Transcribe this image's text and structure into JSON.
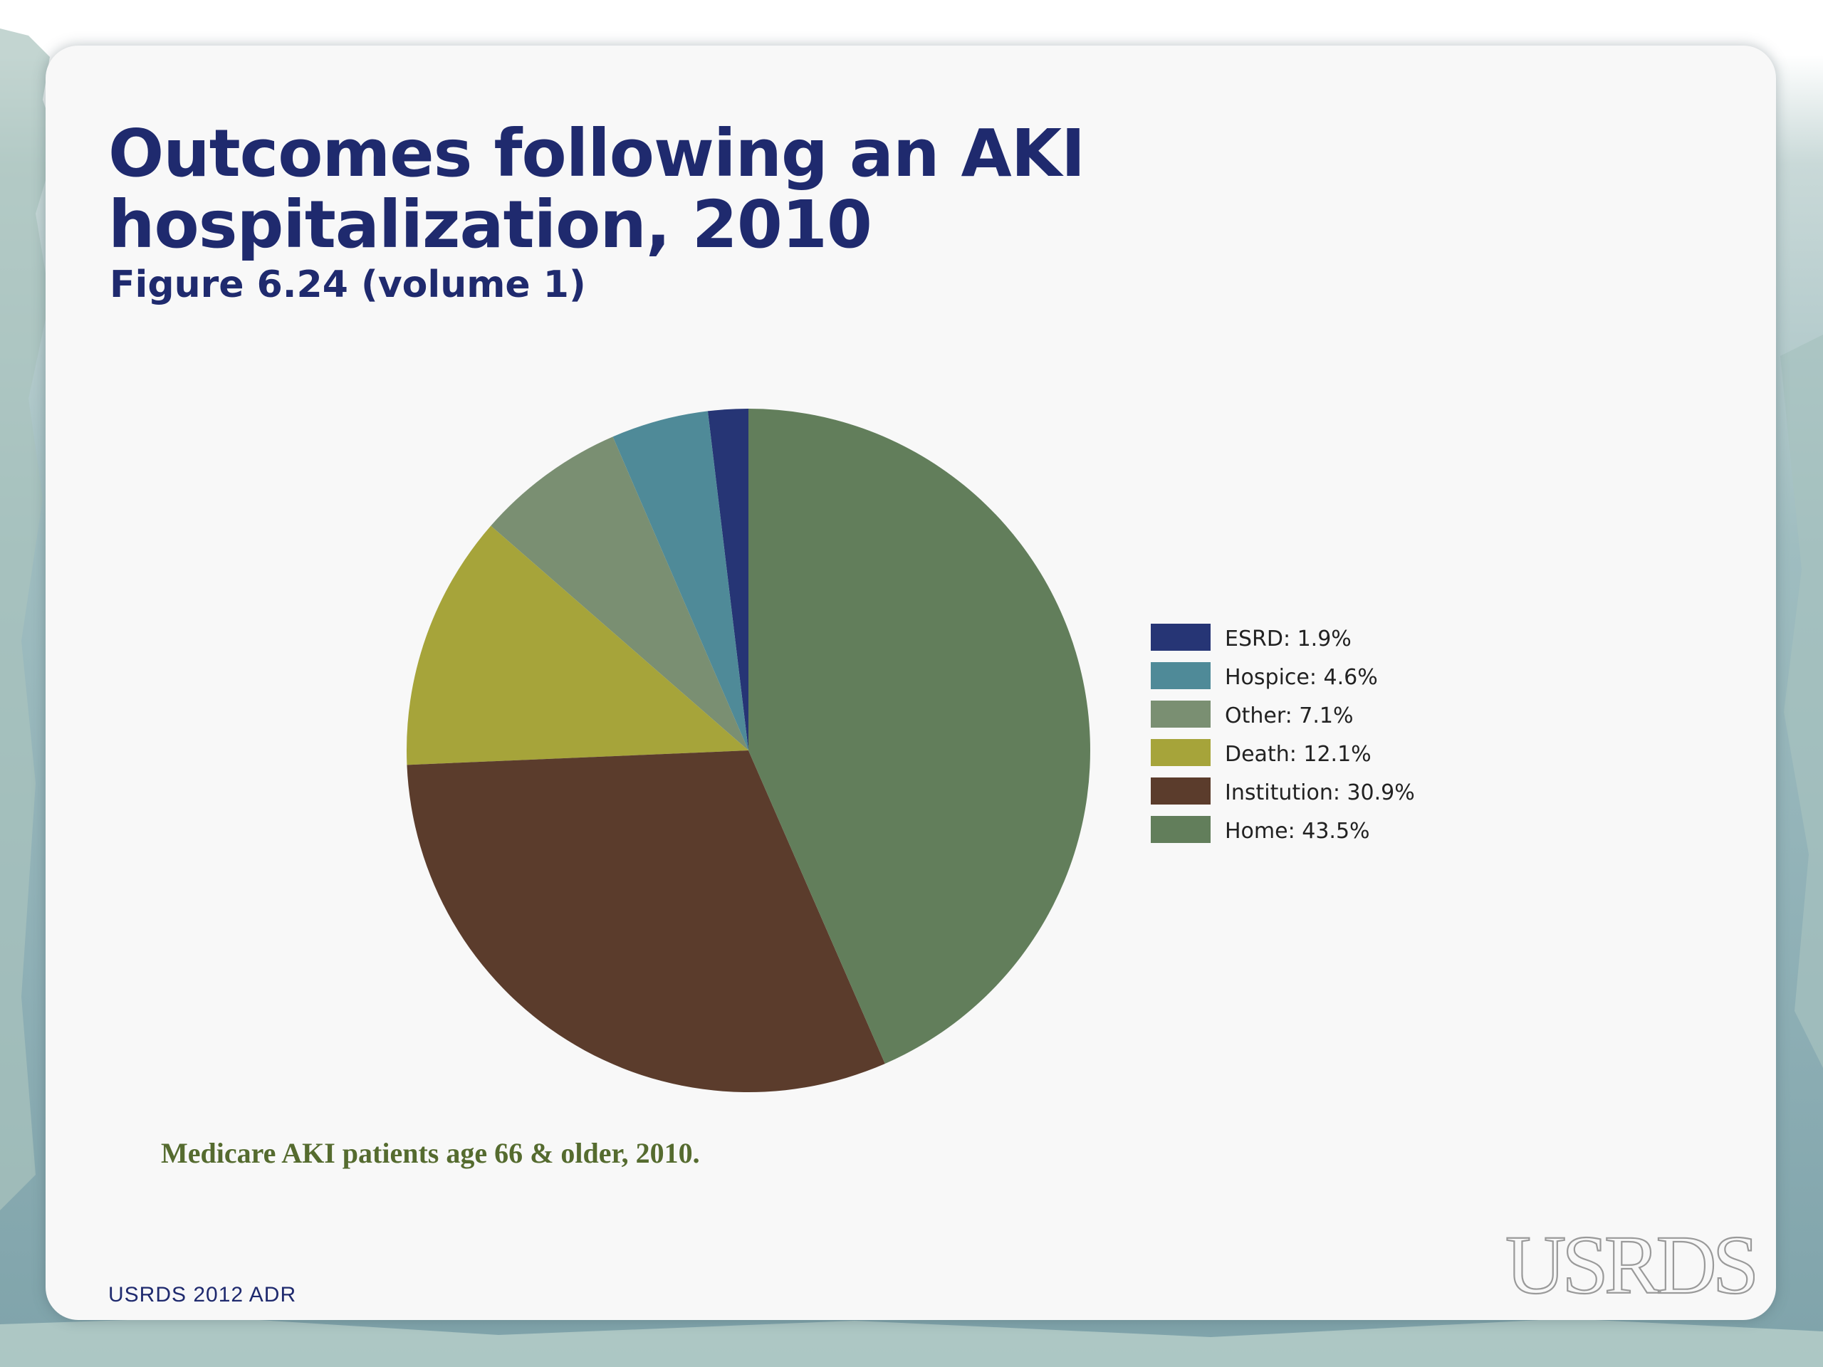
{
  "slide": {
    "title_line1": "Outcomes following an AKI",
    "title_line2": "hospitalization, 2010",
    "subtitle": "Figure 6.24 (volume 1)",
    "caption": "Medicare AKI patients age 66 & older, 2010.",
    "footer_source": "USRDS 2012 ADR",
    "logo_text": "USRDS",
    "colors": {
      "title": "#1f2a6e",
      "caption": "#556b2f",
      "panel": "#f8f8f8"
    }
  },
  "chart_data": {
    "type": "pie",
    "title": "",
    "start_angle": "12 o'clock",
    "direction": "counter-clockwise",
    "legend_position": "right",
    "slices": [
      {
        "label": "ESRD",
        "legend_text": "ESRD: 1.9%",
        "value": 1.9,
        "color": "#263575"
      },
      {
        "label": "Hospice",
        "legend_text": "Hospice: 4.6%",
        "value": 4.6,
        "color": "#4f8a98"
      },
      {
        "label": "Other",
        "legend_text": "Other: 7.1%",
        "value": 7.1,
        "color": "#7a8f72"
      },
      {
        "label": "Death",
        "legend_text": "Death: 12.1%",
        "value": 12.1,
        "color": "#a6a43a"
      },
      {
        "label": "Institution",
        "legend_text": "Institution: 30.9%",
        "value": 30.9,
        "color": "#5b3c2c"
      },
      {
        "label": "Home",
        "legend_text": "Home: 43.5%",
        "value": 43.5,
        "color": "#627e5b"
      }
    ]
  }
}
